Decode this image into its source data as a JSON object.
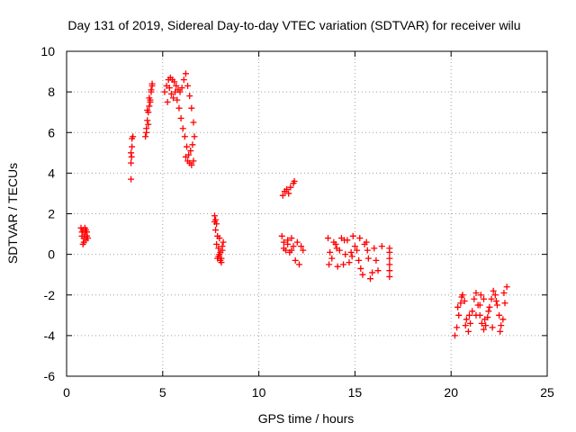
{
  "chart_data": {
    "type": "scatter",
    "title": "Day 131 of 2019, Sidereal Day-to-day VTEC variation (SDTVAR) for receiver wilu",
    "xlabel": "GPS time / hours",
    "ylabel": "SDTVAR / TECUs",
    "xlim": [
      0,
      25
    ],
    "ylim": [
      -6,
      10
    ],
    "xticks": [
      "0",
      "5",
      "10",
      "15",
      "20",
      "25"
    ],
    "yticks": [
      "-6",
      "-4",
      "-2",
      "0",
      "2",
      "4",
      "6",
      "8",
      "10"
    ],
    "grid": true,
    "marker": "+",
    "color": "#ff0000",
    "series": [
      {
        "x": [
          0.75,
          0.8,
          0.85,
          0.9,
          0.95,
          1.0,
          1.05,
          1.1,
          0.85,
          0.95,
          1.05,
          0.8,
          0.9,
          1.0,
          3.35,
          3.35,
          3.35,
          3.4,
          3.4,
          3.45,
          3.38,
          4.1,
          4.15,
          4.2,
          4.25,
          4.3,
          4.35,
          4.4,
          4.45,
          4.2,
          4.3,
          4.4,
          4.25,
          4.35,
          4.15,
          4.45,
          5.1,
          5.2,
          5.3,
          5.4,
          5.5,
          5.6,
          5.7,
          5.8,
          5.9,
          6.0,
          6.1,
          6.2,
          6.3,
          6.4,
          6.5,
          6.6,
          6.65,
          6.55,
          6.45,
          6.35,
          6.25,
          6.15,
          6.05,
          5.95,
          5.85,
          5.75,
          5.65,
          5.55,
          5.45,
          5.35,
          5.25,
          6.2,
          6.3,
          6.4,
          6.5,
          6.6,
          7.7,
          7.75,
          7.8,
          7.85,
          7.9,
          7.95,
          8.0,
          8.05,
          8.1,
          8.15,
          7.8,
          7.9,
          8.0,
          8.1,
          7.75,
          7.85,
          7.95,
          8.05,
          7.7,
          11.2,
          11.3,
          11.4,
          11.5,
          11.6,
          11.7,
          11.8,
          11.9,
          12.0,
          12.1,
          12.2,
          12.3,
          11.3,
          11.5,
          11.7,
          11.25,
          11.35,
          11.45,
          11.55,
          11.65,
          11.8,
          11.85,
          13.6,
          13.8,
          14.0,
          14.2,
          14.4,
          14.6,
          14.8,
          15.0,
          15.2,
          15.4,
          15.6,
          15.8,
          16.0,
          16.2,
          16.4,
          13.7,
          13.9,
          14.1,
          14.3,
          14.5,
          14.7,
          14.9,
          15.1,
          15.3,
          15.5,
          15.7,
          15.9,
          16.1,
          13.65,
          14.05,
          14.45,
          14.85,
          15.25,
          15.65,
          16.8,
          16.8,
          16.8,
          16.8,
          16.8,
          16.8,
          20.2,
          20.3,
          20.4,
          20.5,
          20.6,
          20.7,
          20.8,
          20.9,
          21.0,
          21.1,
          21.2,
          21.3,
          21.4,
          21.5,
          21.6,
          21.7,
          21.8,
          21.9,
          22.0,
          22.1,
          22.2,
          22.3,
          22.4,
          22.5,
          22.6,
          22.7,
          22.8,
          22.9,
          20.35,
          20.55,
          20.75,
          20.95,
          21.55,
          21.75,
          21.95,
          22.15,
          22.35,
          22.55,
          22.75,
          21.3,
          21.5,
          21.7
        ],
        "y": [
          1.3,
          0.9,
          1.2,
          0.6,
          1.0,
          0.7,
          1.1,
          0.8,
          0.5,
          1.3,
          0.9,
          1.1,
          0.8,
          1.2,
          3.7,
          4.5,
          5.0,
          5.3,
          5.7,
          5.8,
          4.8,
          5.8,
          6.2,
          6.6,
          7.0,
          7.3,
          7.6,
          8.0,
          8.3,
          7.1,
          7.7,
          8.1,
          6.4,
          7.5,
          6.0,
          8.4,
          8.0,
          8.3,
          8.6,
          8.7,
          8.6,
          8.5,
          8.3,
          8.1,
          8.0,
          8.2,
          8.6,
          8.9,
          8.3,
          7.8,
          7.2,
          6.5,
          5.8,
          5.4,
          5.1,
          4.9,
          5.3,
          5.8,
          6.2,
          6.7,
          7.2,
          7.6,
          8.0,
          7.7,
          7.9,
          8.2,
          7.5,
          4.8,
          4.6,
          4.5,
          4.4,
          4.6,
          1.9,
          1.2,
          0.5,
          -0.2,
          0.3,
          0.8,
          0.1,
          -0.4,
          0.2,
          0.6,
          1.5,
          -0.1,
          -0.3,
          0.4,
          1.7,
          0.9,
          0.0,
          -0.2,
          1.6,
          0.9,
          0.6,
          0.2,
          0.5,
          0.1,
          0.8,
          0.4,
          -0.3,
          0.6,
          -0.5,
          0.4,
          0.2,
          0.3,
          0.7,
          0.2,
          2.9,
          3.1,
          3.2,
          3.0,
          3.3,
          3.5,
          3.6,
          0.8,
          -0.2,
          0.5,
          0.2,
          -0.5,
          0.7,
          0.1,
          0.4,
          -0.3,
          -1.0,
          0.6,
          -1.2,
          0.3,
          -0.8,
          0.4,
          0.1,
          0.6,
          -0.6,
          0.8,
          0.0,
          -0.4,
          0.9,
          0.2,
          -0.7,
          0.5,
          -0.2,
          -0.9,
          -0.3,
          -0.5,
          0.3,
          0.7,
          -0.1,
          0.8,
          0.2,
          0.3,
          -0.2,
          -0.5,
          -0.8,
          -1.1,
          0.1,
          -4.0,
          -3.6,
          -3.0,
          -2.4,
          -2.0,
          -2.3,
          -3.2,
          -3.8,
          -3.4,
          -2.8,
          -2.2,
          -1.9,
          -2.5,
          -3.0,
          -3.4,
          -3.7,
          -3.5,
          -3.1,
          -2.6,
          -2.2,
          -1.8,
          -2.0,
          -2.5,
          -3.0,
          -3.5,
          -3.2,
          -2.4,
          -1.6,
          -2.6,
          -2.1,
          -3.5,
          -3.0,
          -2.0,
          -3.2,
          -2.8,
          -3.6,
          -2.3,
          -3.8,
          -1.9,
          -3.0,
          -2.5,
          -2.2
        ]
      }
    ]
  }
}
